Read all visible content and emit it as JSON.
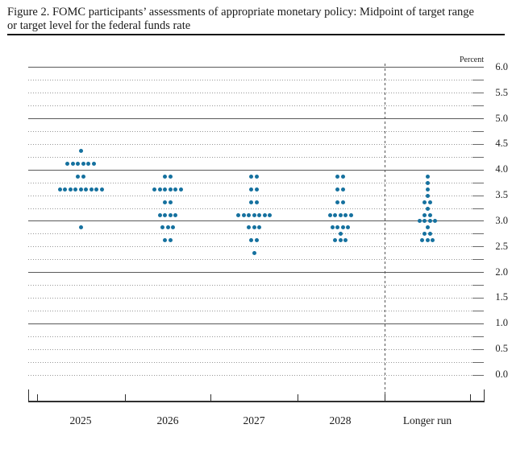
{
  "figure": {
    "title_line1": "Figure 2. FOMC participants’ assessments of appropriate monetary policy: Midpoint of target range",
    "title_line2": "or target level for the federal funds rate"
  },
  "chart_data": {
    "type": "scatter",
    "subtype": "fomc-dot-plot",
    "title": "FOMC participants’ assessments of appropriate monetary policy: Midpoint of target range or target level for the federal funds rate",
    "ylabel": "Percent",
    "ylim": [
      0.0,
      6.0
    ],
    "y_gridline_step": 0.25,
    "y_label_step": 0.5,
    "solid_gridlines": [
      1.0,
      2.0,
      3.0,
      4.0,
      5.0,
      6.0
    ],
    "grid": true,
    "legend_position": "none",
    "dot_color": "#15719f",
    "categories": [
      "2025",
      "2026",
      "2027",
      "2028",
      "Longer run"
    ],
    "separator_before_category": "Longer run",
    "series": [
      {
        "category": "2025",
        "dots": [
          {
            "rate": 4.375,
            "count": 1
          },
          {
            "rate": 4.125,
            "count": 6
          },
          {
            "rate": 3.875,
            "count": 2
          },
          {
            "rate": 3.625,
            "count": 9
          },
          {
            "rate": 2.875,
            "count": 1
          }
        ]
      },
      {
        "category": "2026",
        "dots": [
          {
            "rate": 3.875,
            "count": 2
          },
          {
            "rate": 3.625,
            "count": 6
          },
          {
            "rate": 3.375,
            "count": 2
          },
          {
            "rate": 3.125,
            "count": 4
          },
          {
            "rate": 2.875,
            "count": 3
          },
          {
            "rate": 2.625,
            "count": 2
          }
        ]
      },
      {
        "category": "2027",
        "dots": [
          {
            "rate": 3.875,
            "count": 2
          },
          {
            "rate": 3.625,
            "count": 2
          },
          {
            "rate": 3.375,
            "count": 2
          },
          {
            "rate": 3.125,
            "count": 7
          },
          {
            "rate": 2.875,
            "count": 3
          },
          {
            "rate": 2.625,
            "count": 2
          },
          {
            "rate": 2.375,
            "count": 1
          }
        ]
      },
      {
        "category": "2028",
        "dots": [
          {
            "rate": 3.875,
            "count": 2
          },
          {
            "rate": 3.625,
            "count": 2
          },
          {
            "rate": 3.375,
            "count": 2
          },
          {
            "rate": 3.125,
            "count": 5
          },
          {
            "rate": 2.875,
            "count": 4
          },
          {
            "rate": 2.75,
            "count": 1
          },
          {
            "rate": 2.625,
            "count": 3
          }
        ]
      },
      {
        "category": "Longer run",
        "dots": [
          {
            "rate": 3.875,
            "count": 1
          },
          {
            "rate": 3.75,
            "count": 1
          },
          {
            "rate": 3.625,
            "count": 1
          },
          {
            "rate": 3.5,
            "count": 1
          },
          {
            "rate": 3.375,
            "count": 2
          },
          {
            "rate": 3.25,
            "count": 1
          },
          {
            "rate": 3.125,
            "count": 2
          },
          {
            "rate": 3.0,
            "count": 4
          },
          {
            "rate": 2.875,
            "count": 1
          },
          {
            "rate": 2.75,
            "count": 2
          },
          {
            "rate": 2.625,
            "count": 3
          }
        ]
      }
    ]
  }
}
